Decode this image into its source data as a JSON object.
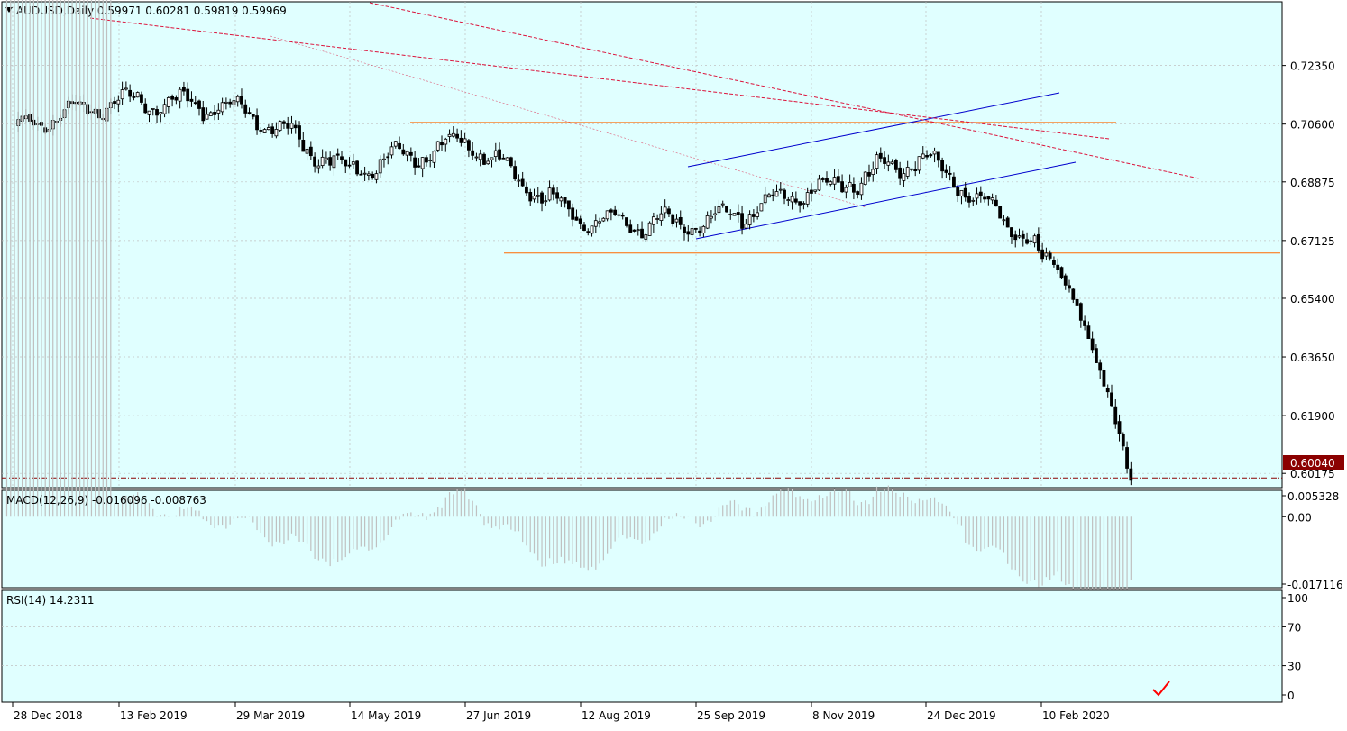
{
  "main": {
    "header": "AUDUSD,Daily  0.59971 0.60281 0.59819 0.59969",
    "price_ticks": [
      "0.72350",
      "0.70600",
      "0.68875",
      "0.67125",
      "0.65400",
      "0.63650",
      "0.61900",
      "0.60175"
    ],
    "current_price": "0.60040"
  },
  "macd": {
    "header": "MACD(12,26,9) -0.016096 -0.008763",
    "ticks": [
      "0.005328",
      "0.00",
      "-0.017116"
    ]
  },
  "rsi": {
    "header": "RSI(14) 14.2311",
    "ticks": [
      "100",
      "70",
      "30",
      "0"
    ]
  },
  "x_axis": {
    "labels": [
      "28 Dec 2018",
      "13 Feb 2019",
      "29 Mar 2019",
      "14 May 2019",
      "27 Jun 2019",
      "12 Aug 2019",
      "25 Sep 2019",
      "8 Nov 2019",
      "24 Dec 2019",
      "10 Feb 2020"
    ]
  },
  "colors": {
    "background": "#e0ffff",
    "candle": "#000000",
    "support_resistance": "#ff6a00",
    "channel": "#0000cd",
    "trendline": "#dc143c",
    "macd_signal": "#ff0000",
    "macd_hist": "#c0c0c0",
    "rsi_line": "#1e90ff",
    "price_box": "#8b0000",
    "checkmark": "#ff0000"
  },
  "chart_data": [
    {
      "type": "candlestick",
      "title": "AUDUSD,Daily",
      "ohlc_last": {
        "open": 0.59971,
        "high": 0.60281,
        "low": 0.59819,
        "close": 0.59969
      },
      "x_dates": [
        "28 Dec 2018",
        "13 Feb 2019",
        "29 Mar 2019",
        "14 May 2019",
        "27 Jun 2019",
        "12 Aug 2019",
        "25 Sep 2019",
        "8 Nov 2019",
        "24 Dec 2019",
        "10 Feb 2020"
      ],
      "close_path": [
        [
          "28 Dec 2018",
          0.705
        ],
        [
          "13 Feb 2019",
          0.713
        ],
        [
          "29 Mar 2019",
          0.711
        ],
        [
          "14 May 2019",
          0.692
        ],
        [
          "27 Jun 2019",
          0.701
        ],
        [
          "12 Aug 2019",
          0.677
        ],
        [
          "25 Sep 2019",
          0.676
        ],
        [
          "8 Nov 2019",
          0.686
        ],
        [
          "24 Dec 2019",
          0.696
        ],
        [
          "10 Feb 2020",
          0.668
        ],
        [
          "last",
          0.59969
        ]
      ],
      "ylim": [
        0.5975,
        0.7425
      ],
      "levels": {
        "resistance": 0.7065,
        "support": 0.6675,
        "current": 0.6004
      }
    },
    {
      "type": "line",
      "title": "MACD(12,26,9)",
      "main": -0.016096,
      "signal": -0.008763,
      "ylim": [
        -0.017116,
        0.005328
      ]
    },
    {
      "type": "line",
      "title": "RSI(14)",
      "last": 14.2311,
      "levels": [
        70,
        30
      ],
      "ylim": [
        0,
        100
      ]
    }
  ]
}
